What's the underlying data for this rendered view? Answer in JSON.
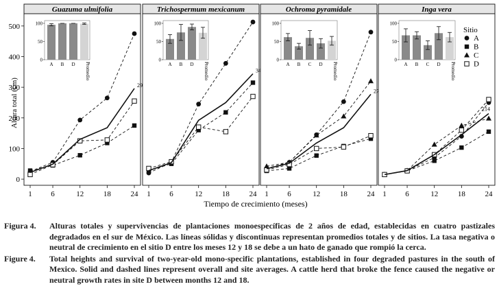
{
  "chart_data": {
    "type": "line",
    "x": [
      1,
      6,
      12,
      18,
      24
    ],
    "xticks": [
      "1",
      "6",
      "12",
      "18",
      "24"
    ],
    "xlabel": "Tiempo de crecimiento (meses)",
    "ylabel": "Altura total (cm)",
    "ylim": [
      -20,
      540
    ],
    "yticks": [
      "0",
      "100",
      "200",
      "300",
      "400",
      "500"
    ],
    "legend": {
      "title": "Sitio",
      "placement": "right",
      "entries": [
        {
          "name": "A",
          "marker": "circle"
        },
        {
          "name": "B",
          "marker": "square"
        },
        {
          "name": "C",
          "marker": "triangle"
        },
        {
          "name": "D",
          "marker": "open-square"
        }
      ]
    },
    "panels": [
      {
        "title": "Guazuma ulmifolia",
        "series": [
          {
            "name": "A",
            "marker": "circle",
            "values": [
              25,
              55,
              193,
              265,
              475
            ]
          },
          {
            "name": "B",
            "marker": "square",
            "values": [
              28,
              45,
              78,
              118,
              175
            ]
          },
          {
            "name": "D",
            "marker": "open-square",
            "values": [
              15,
              47,
              125,
              128,
              255
            ]
          },
          {
            "name": "Promedio",
            "style": "solid",
            "values": [
              22,
              49,
              130,
              168,
              296
            ]
          }
        ],
        "end_label": "296",
        "survival": {
          "categories": [
            "A",
            "B",
            "D",
            "Promedio"
          ],
          "values": [
            96,
            100,
            100,
            99
          ],
          "errors": [
            3,
            0,
            0,
            2
          ]
        }
      },
      {
        "title": "Trichospermum mexicanum",
        "series": [
          {
            "name": "A",
            "marker": "circle",
            "values": [
              20,
              55,
              245,
              378,
              513
            ]
          },
          {
            "name": "B",
            "marker": "square",
            "values": [
              28,
              50,
              160,
              218,
              315
            ]
          },
          {
            "name": "D",
            "marker": "open-square",
            "values": [
              35,
              57,
              170,
              155,
              270
            ]
          },
          {
            "name": "Promedio",
            "style": "solid",
            "values": [
              28,
              54,
              192,
              250,
              344
            ]
          }
        ],
        "end_label": "344",
        "survival": {
          "categories": [
            "A",
            "B",
            "D",
            "Promedio"
          ],
          "values": [
            57,
            75,
            90,
            74
          ],
          "errors": [
            12,
            22,
            8,
            15
          ]
        }
      },
      {
        "title": "Ochroma pyramidale",
        "series": [
          {
            "name": "A",
            "marker": "circle",
            "values": [
              35,
              55,
              145,
              253,
              480
            ]
          },
          {
            "name": "B",
            "marker": "square",
            "values": [
              27,
              35,
              77,
              108,
              132
            ]
          },
          {
            "name": "C",
            "marker": "triangle",
            "values": [
              42,
              55,
              143,
              205,
              320
            ]
          },
          {
            "name": "D",
            "marker": "open-square",
            "values": [
              30,
              48,
              100,
              105,
              142
            ]
          },
          {
            "name": "Promedio",
            "style": "solid",
            "values": [
              34,
              52,
              118,
              168,
              277
            ]
          }
        ],
        "end_label": "277",
        "survival": {
          "categories": [
            "A",
            "B",
            "C",
            "D",
            "Promedio"
          ],
          "values": [
            62,
            37,
            60,
            45,
            52
          ],
          "errors": [
            10,
            8,
            20,
            13,
            12
          ]
        }
      },
      {
        "title": "Inga vera",
        "series": [
          {
            "name": "A",
            "marker": "circle",
            "values": [
              15,
              28,
              70,
              140,
              250
            ]
          },
          {
            "name": "B",
            "marker": "square",
            "values": [
              15,
              27,
              60,
              103,
              155
            ]
          },
          {
            "name": "C",
            "marker": "triangle",
            "values": [
              15,
              28,
              113,
              175,
              198
            ]
          },
          {
            "name": "D",
            "marker": "open-square",
            "values": [
              15,
              27,
              80,
              160,
              260
            ]
          },
          {
            "name": "Promedio",
            "style": "solid",
            "values": [
              15,
              28,
              80,
              145,
              214
            ]
          }
        ],
        "end_label": "214",
        "survival": {
          "categories": [
            "A",
            "B",
            "C",
            "D",
            "Promedio"
          ],
          "values": [
            67,
            67,
            40,
            73,
            62
          ],
          "errors": [
            18,
            10,
            12,
            18,
            13
          ]
        }
      }
    ],
    "inset": {
      "yticks": [
        "0",
        "50",
        "100"
      ],
      "ylim": [
        0,
        100
      ]
    }
  },
  "colors": {
    "bar_site": "#8a8a8a",
    "bar_promedio": "#d4d4d4",
    "panel_header": "#e6e6e6",
    "text": "#111111"
  },
  "caption": [
    {
      "label": "Figura 4.",
      "text": "Alturas totales y supervivencias de plantaciones monoespecíficas de 2 años de edad, establecidas en cuatro pastizales degradados en el sur de México. Las líneas sólidas y discontinuas representan promedios totales y de sitios. La tasa negativa o neutral de crecimiento en el sitio D entre los meses 12 y 18 se debe a un hato de ganado que rompió la cerca."
    },
    {
      "label": "Figure 4.",
      "text": "Total heights and survival of two-year-old mono-specific plantations, established in four degraded pastures in the south of Mexico. Solid and dashed lines represent overall and site averages. A cattle herd that broke the fence caused the negative or neutral growth rates in site D between months 12 and 18."
    }
  ]
}
